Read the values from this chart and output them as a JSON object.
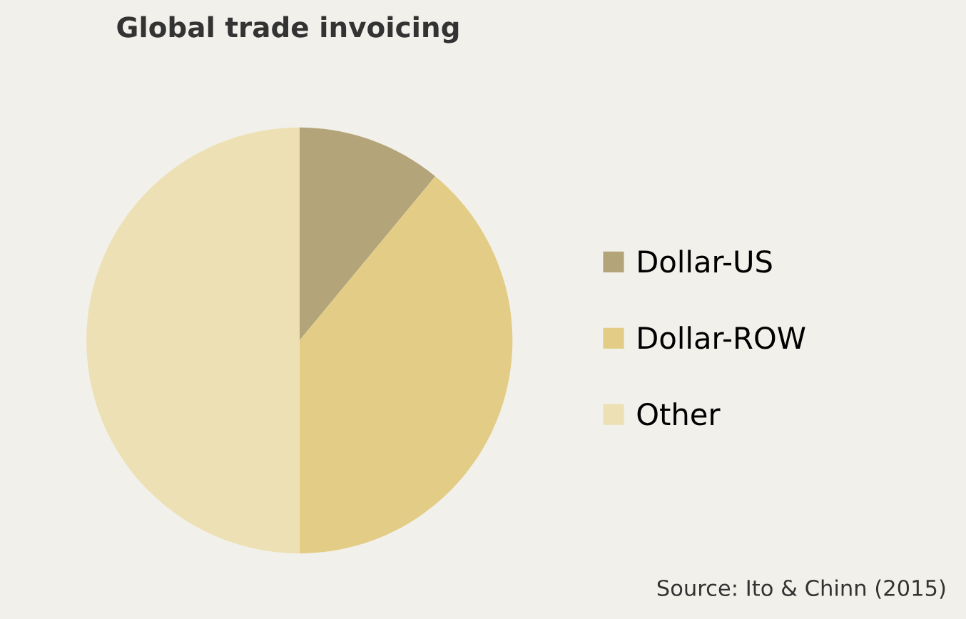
{
  "chart_data": {
    "type": "pie",
    "title": "Global trade invoicing",
    "categories": [
      "Dollar-US",
      "Dollar-ROW",
      "Other"
    ],
    "values": [
      11,
      39,
      50
    ],
    "colors": [
      "#b3a47a",
      "#e3cd86",
      "#ece0b4"
    ],
    "legend": "right",
    "annotations": [
      "Source: Ito & Chinn (2015)"
    ]
  }
}
